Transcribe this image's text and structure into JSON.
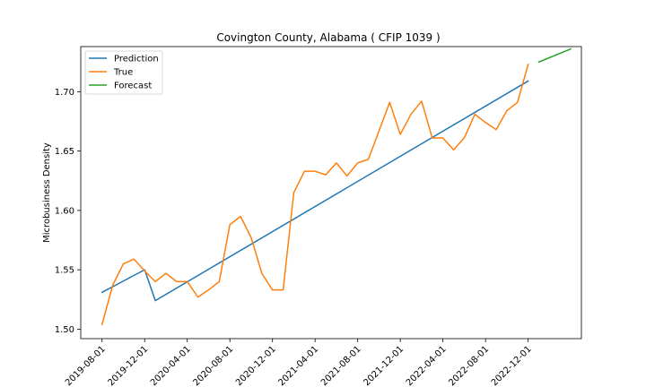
{
  "chart_data": {
    "type": "line",
    "title": "Covington County, Alabama ( CFIP 1039 )",
    "xlabel": "",
    "ylabel": "Microbusiness Density",
    "ylim": [
      1.492,
      1.738
    ],
    "y_ticks": [
      "1.50",
      "1.55",
      "1.60",
      "1.65",
      "1.70"
    ],
    "y_tick_values": [
      1.5,
      1.55,
      1.6,
      1.65,
      1.7
    ],
    "x_ticks": [
      "2019-08-01",
      "2019-12-01",
      "2020-04-01",
      "2020-08-01",
      "2020-12-01",
      "2021-04-01",
      "2021-08-01",
      "2021-12-01",
      "2022-04-01",
      "2022-08-01",
      "2022-12-01"
    ],
    "legend_position": "top-left",
    "grid": false,
    "colors": {
      "Prediction": "#1f77b4",
      "True": "#ff7f0e",
      "Forecast": "#2ca02c"
    },
    "series": [
      {
        "name": "Prediction",
        "x": [
          "2019-08-01",
          "2019-12-01",
          "2020-01-01",
          "2022-12-01"
        ],
        "values": [
          1.531,
          1.55,
          1.524,
          1.709
        ],
        "segments": [
          {
            "x": [
              "2019-08-01",
              "2019-12-01"
            ],
            "values": [
              1.531,
              1.55
            ]
          },
          {
            "x": [
              "2020-01-01",
              "2020-10-01"
            ],
            "values": [
              1.524,
              1.577
            ]
          },
          {
            "x": [
              "2020-11-01",
              "2021-11-01"
            ],
            "values": [
              1.607,
              1.661
            ]
          },
          {
            "x": [
              "2021-12-01",
              "2022-12-01"
            ],
            "values": [
              1.655,
              1.709
            ]
          }
        ],
        "segments_joined": true
      },
      {
        "name": "True",
        "x": [
          "2019-08-01",
          "2019-09-01",
          "2019-10-01",
          "2019-11-01",
          "2019-12-01",
          "2020-01-01",
          "2020-02-01",
          "2020-03-01",
          "2020-04-01",
          "2020-05-01",
          "2020-06-01",
          "2020-07-01",
          "2020-08-01",
          "2020-09-01",
          "2020-10-01",
          "2020-11-01",
          "2020-12-01",
          "2021-01-01",
          "2021-02-01",
          "2021-03-01",
          "2021-04-01",
          "2021-05-01",
          "2021-06-01",
          "2021-07-01",
          "2021-08-01",
          "2021-09-01",
          "2021-10-01",
          "2021-11-01",
          "2021-12-01",
          "2022-01-01",
          "2022-02-01",
          "2022-03-01",
          "2022-04-01",
          "2022-05-01",
          "2022-06-01",
          "2022-07-01",
          "2022-08-01",
          "2022-09-01",
          "2022-10-01",
          "2022-11-01",
          "2022-12-01"
        ],
        "values": [
          1.504,
          1.537,
          1.555,
          1.559,
          1.549,
          1.54,
          1.547,
          1.54,
          1.54,
          1.527,
          1.533,
          1.54,
          1.588,
          1.595,
          1.577,
          1.547,
          1.533,
          1.533,
          1.615,
          1.633,
          1.633,
          1.63,
          1.64,
          1.629,
          1.64,
          1.643,
          1.667,
          1.691,
          1.664,
          1.681,
          1.692,
          1.661,
          1.661,
          1.651,
          1.661,
          1.681,
          1.674,
          1.668,
          1.684,
          1.691,
          1.723
        ]
      },
      {
        "name": "Forecast",
        "x": [
          "2023-01-01",
          "2023-04-01"
        ],
        "values": [
          1.725,
          1.736
        ]
      }
    ]
  }
}
